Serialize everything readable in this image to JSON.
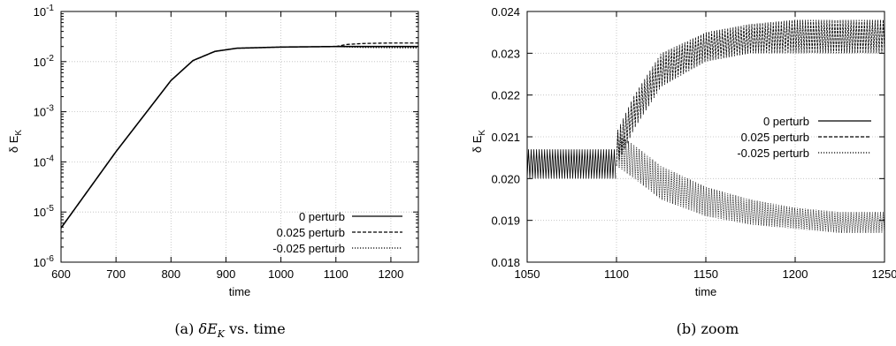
{
  "chart_data": [
    {
      "type": "line",
      "ylabel": "δ E",
      "ylabel_sub": "K",
      "xlabel": "time",
      "xlim": [
        600,
        1250
      ],
      "ylim": [
        1e-06,
        0.1
      ],
      "yscale": "log",
      "grid": true,
      "legend_position": "bottom-right",
      "x_ticks": [
        600,
        700,
        800,
        900,
        1000,
        1100,
        1200
      ],
      "x_tick_labels": [
        "600",
        "700",
        "800",
        "900",
        "1000",
        "1100",
        "1200"
      ],
      "y_tick_mantissa": [
        "10",
        "10",
        "10",
        "10",
        "10",
        "10"
      ],
      "y_tick_exponents": [
        "-6",
        "-5",
        "-4",
        "-3",
        "-2",
        "-1"
      ],
      "y_tick_values": [
        1e-06,
        1e-05,
        0.0001,
        0.001,
        0.01,
        0.1
      ],
      "series": [
        {
          "name": "0 perturb",
          "dash": "solid",
          "x": [
            600,
            700,
            800,
            840,
            880,
            920,
            1000,
            1100,
            1250
          ],
          "y": [
            4.8e-06,
            0.00016,
            0.0042,
            0.0105,
            0.016,
            0.0185,
            0.0195,
            0.02,
            0.02
          ]
        },
        {
          "name": "0.025 perturb",
          "dash": "dashed",
          "x": [
            1100,
            1120,
            1150,
            1200,
            1250
          ],
          "y": [
            0.02,
            0.022,
            0.023,
            0.0235,
            0.0235
          ]
        },
        {
          "name": "-0.025 perturb",
          "dash": "dotted",
          "x": [
            1100,
            1120,
            1150,
            1200,
            1250
          ],
          "y": [
            0.02,
            0.0197,
            0.0192,
            0.019,
            0.0188
          ]
        }
      ]
    },
    {
      "type": "line",
      "ylabel": "δ E",
      "ylabel_sub": "K",
      "xlabel": "time",
      "xlim": [
        1050,
        1250
      ],
      "ylim": [
        0.018,
        0.024
      ],
      "grid": true,
      "legend_position": "center-right",
      "x_ticks": [
        1050,
        1100,
        1150,
        1200,
        1250
      ],
      "x_tick_labels": [
        "1050",
        "1100",
        "1150",
        "1200",
        "1250"
      ],
      "y_ticks": [
        0.018,
        0.019,
        0.02,
        0.021,
        0.022,
        0.023,
        0.024
      ],
      "y_tick_labels": [
        "0.018",
        "0.019",
        "0.020",
        "0.021",
        "0.022",
        "0.023",
        "0.024"
      ],
      "series": [
        {
          "name": "0 perturb",
          "dash": "solid",
          "oscillation_band": {
            "x_start": 1050,
            "x_end": 1100,
            "lower": 0.02,
            "upper": 0.0207,
            "period": 1.5
          }
        },
        {
          "name": "0.025 perturb",
          "dash": "dashed",
          "oscillation_band": {
            "x": [
              1100,
              1110,
              1125,
              1150,
              1175,
              1200,
              1225,
              1250
            ],
            "lower": [
              0.0203,
              0.0212,
              0.0222,
              0.0228,
              0.023,
              0.023,
              0.023,
              0.023
            ],
            "upper": [
              0.0211,
              0.022,
              0.023,
              0.0235,
              0.0237,
              0.0238,
              0.0238,
              0.0238
            ],
            "period": 1.5
          }
        },
        {
          "name": "-0.025 perturb",
          "dash": "dotted",
          "oscillation_band": {
            "x": [
              1100,
              1110,
              1125,
              1150,
              1175,
              1200,
              1225,
              1250
            ],
            "lower": [
              0.0203,
              0.02,
              0.0195,
              0.0191,
              0.0189,
              0.0188,
              0.0187,
              0.0187
            ],
            "upper": [
              0.0211,
              0.0208,
              0.0203,
              0.0198,
              0.0195,
              0.0193,
              0.0192,
              0.0192
            ],
            "period": 1.5
          }
        }
      ]
    }
  ],
  "captions": {
    "a": {
      "label": "(a)",
      "symbol": "δE",
      "sub": "K",
      "rest": "vs. time"
    },
    "b": {
      "label": "(b)",
      "text": "zoom"
    }
  }
}
